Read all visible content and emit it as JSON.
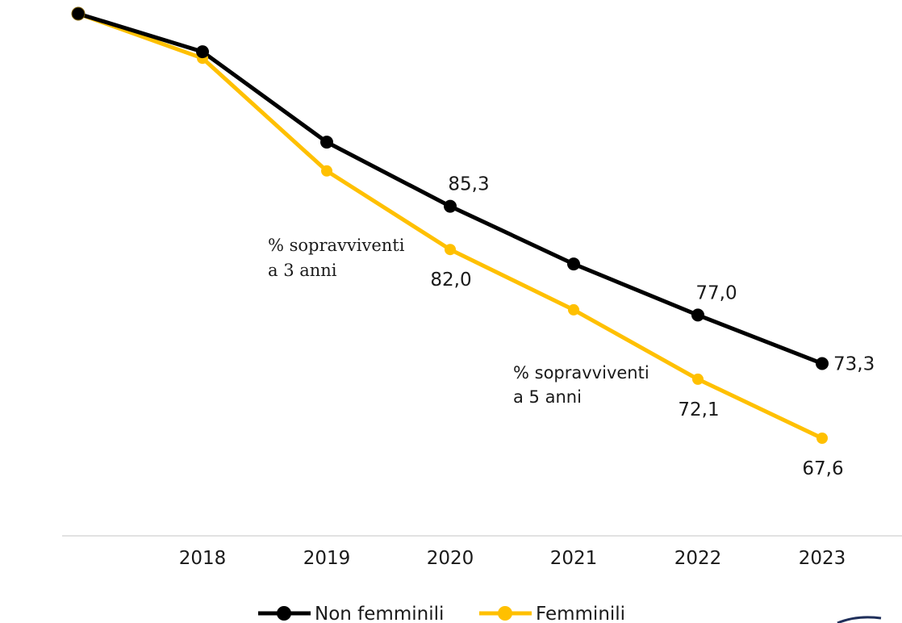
{
  "chart_data": {
    "type": "line",
    "x": [
      "2017",
      "2018",
      "2019",
      "2020",
      "2021",
      "2022",
      "2023"
    ],
    "categories": [
      "",
      "2018",
      "2019",
      "2020",
      "2021",
      "2022",
      "2023"
    ],
    "series": [
      {
        "name": "Non femminili",
        "color": "#000000",
        "values": [
          100.0,
          97.1,
          90.2,
          85.3,
          80.9,
          77.0,
          73.3
        ],
        "labels": [
          "",
          "",
          "",
          "85,3",
          "",
          "77,0",
          "73,3"
        ]
      },
      {
        "name": "Femminili",
        "color": "#FFC000",
        "values": [
          100.0,
          96.6,
          88.0,
          82.0,
          77.4,
          72.1,
          67.6
        ],
        "labels": [
          "",
          "",
          "",
          "82,0",
          "",
          "72,1",
          "67,6"
        ]
      }
    ],
    "annotations": [
      {
        "id": "a3",
        "lines": [
          "% sopravviventi",
          "a 3 anni"
        ]
      },
      {
        "id": "a5",
        "lines": [
          "% sopravviventi",
          "a 5 anni"
        ]
      }
    ],
    "ylim": [
      64,
      101
    ],
    "grid": false,
    "legend": "bottom-center"
  }
}
